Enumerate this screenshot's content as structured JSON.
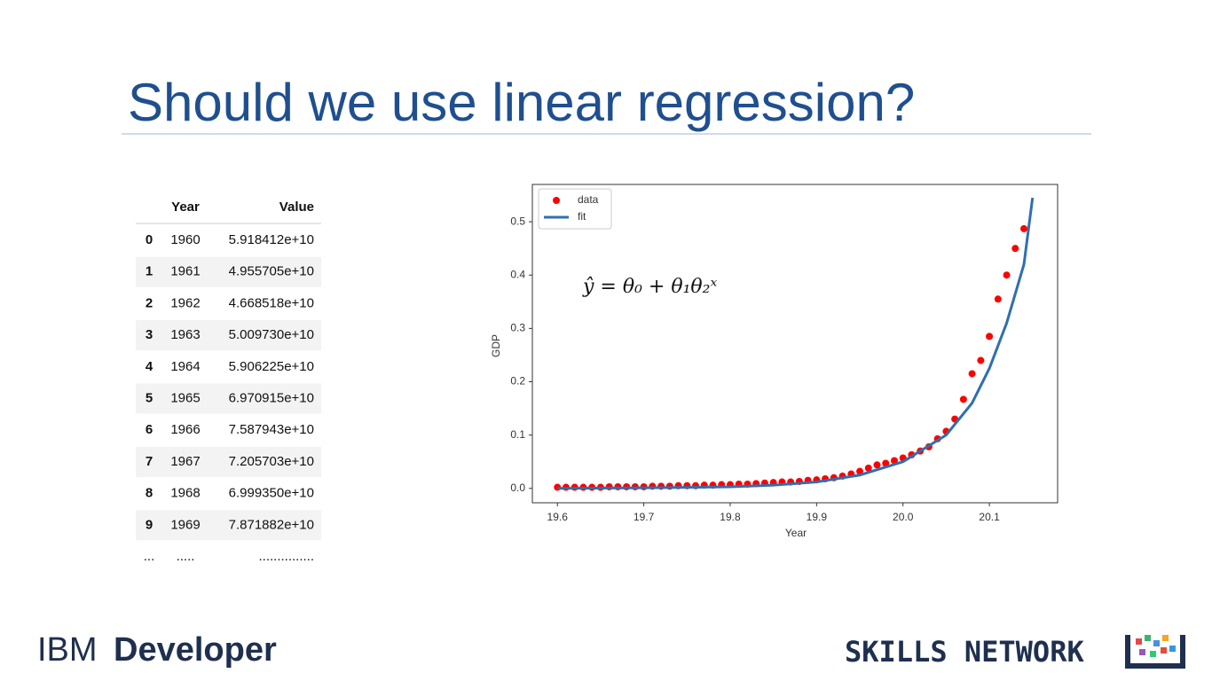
{
  "title": "Should we use linear regression?",
  "table": {
    "headers": [
      "Year",
      "Value"
    ],
    "rows": [
      [
        "0",
        "1960",
        "5.918412e+10"
      ],
      [
        "1",
        "1961",
        "4.955705e+10"
      ],
      [
        "2",
        "1962",
        "4.668518e+10"
      ],
      [
        "3",
        "1963",
        "5.009730e+10"
      ],
      [
        "4",
        "1964",
        "5.906225e+10"
      ],
      [
        "5",
        "1965",
        "6.970915e+10"
      ],
      [
        "6",
        "1966",
        "7.587943e+10"
      ],
      [
        "7",
        "1967",
        "7.205703e+10"
      ],
      [
        "8",
        "1968",
        "6.999350e+10"
      ],
      [
        "9",
        "1969",
        "7.871882e+10"
      ]
    ],
    "ellipsis": [
      "...",
      ".....",
      "..............."
    ]
  },
  "chart_data": {
    "type": "scatter",
    "xlabel": "Year",
    "ylabel": "GDP",
    "annotation": "ŷ = θ₀ + θ₁θ₂ˣ",
    "xlim": [
      19.571,
      20.179
    ],
    "ylim": [
      -0.027,
      0.57
    ],
    "xticks": [
      19.6,
      19.7,
      19.8,
      19.9,
      {
        "value": 20,
        "label": "20.0"
      },
      20.1
    ],
    "yticks": [
      {
        "value": 0,
        "label": "0.0"
      },
      0.1,
      0.2,
      0.3,
      0.4,
      0.5
    ],
    "legend": "upper-left",
    "series": [
      {
        "name": "data",
        "color": "#ff0000",
        "mode": "markers",
        "x": [
          19.6,
          19.61,
          19.62,
          19.63,
          19.64,
          19.65,
          19.66,
          19.67,
          19.68,
          19.69,
          19.7,
          19.71,
          19.72,
          19.73,
          19.74,
          19.75,
          19.76,
          19.77,
          19.78,
          19.79,
          19.8,
          19.81,
          19.82,
          19.83,
          19.84,
          19.85,
          19.86,
          19.87,
          19.88,
          19.89,
          19.9,
          19.91,
          19.92,
          19.93,
          19.94,
          19.95,
          19.96,
          19.97,
          19.98,
          19.99,
          20.0,
          20.01,
          20.02,
          20.03,
          20.04,
          20.05,
          20.06,
          20.07,
          20.08,
          20.09,
          20.1,
          20.11,
          20.12,
          20.13,
          20.14
        ],
        "values": [
          0.002,
          0.002,
          0.002,
          0.002,
          0.002,
          0.002,
          0.003,
          0.003,
          0.003,
          0.003,
          0.003,
          0.004,
          0.004,
          0.004,
          0.005,
          0.005,
          0.005,
          0.006,
          0.006,
          0.007,
          0.007,
          0.008,
          0.008,
          0.009,
          0.01,
          0.011,
          0.012,
          0.012,
          0.013,
          0.015,
          0.016,
          0.018,
          0.02,
          0.023,
          0.027,
          0.032,
          0.038,
          0.044,
          0.047,
          0.052,
          0.057,
          0.063,
          0.07,
          0.078,
          0.093,
          0.107,
          0.13,
          0.167,
          0.215,
          0.24,
          0.285,
          0.355,
          0.4,
          0.45,
          0.487
        ]
      },
      {
        "name": "fit",
        "color": "#2f6fb0",
        "mode": "line",
        "x": [
          19.6,
          19.7,
          19.8,
          19.85,
          19.9,
          19.95,
          20.0,
          20.05,
          20.08,
          20.1,
          20.12,
          20.14,
          20.15
        ],
        "values": [
          0,
          0.001,
          0.003,
          0.006,
          0.012,
          0.025,
          0.05,
          0.1,
          0.16,
          0.225,
          0.31,
          0.42,
          0.545
        ]
      }
    ]
  },
  "footer": {
    "brand_light": "IBM",
    "brand_bold": "Developer",
    "network": "SKILLS NETWORK"
  }
}
